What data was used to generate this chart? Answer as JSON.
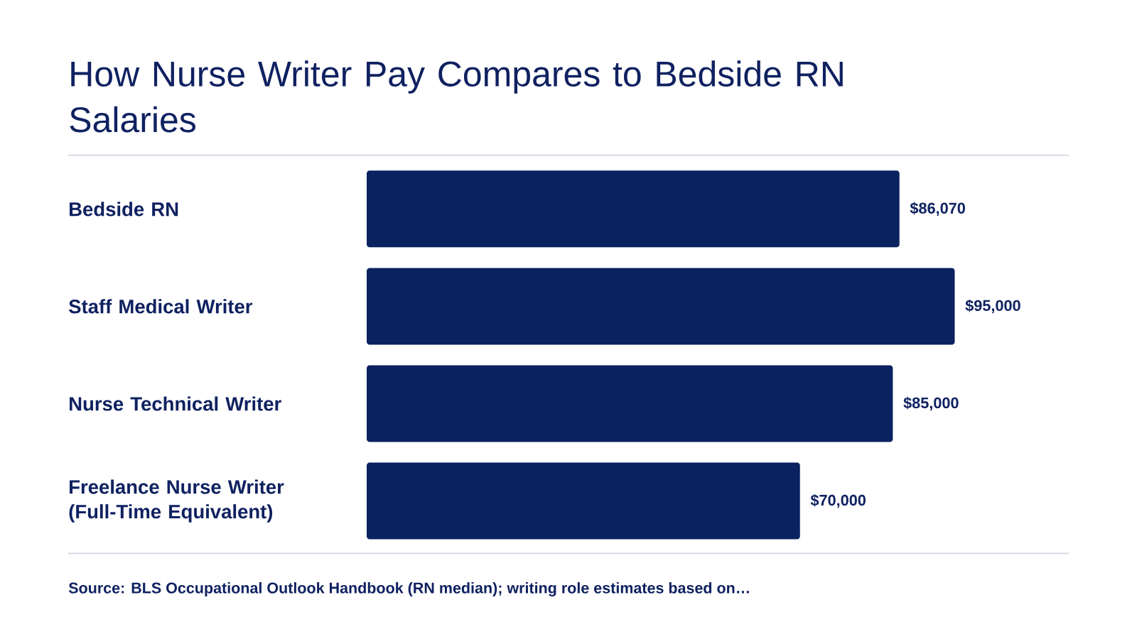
{
  "chart_data": {
    "type": "bar",
    "orientation": "horizontal",
    "title": "How Nurse Writer Pay Compares to Bedside RN Salaries",
    "categories": [
      "Bedside RN",
      "Staff Medical Writer",
      "Nurse Technical Writer",
      "Freelance Nurse Writer (Full-Time Equivalent)"
    ],
    "values": [
      86070,
      95000,
      85000,
      70000
    ],
    "value_labels": [
      "$86,070",
      "$95,000",
      "$85,000",
      "$70,000"
    ],
    "color": "#0b2260",
    "tick_labels": "y",
    "annotations": [
      "Source: BLS Occupational Outlook Handbook (RN median); writing role estimates based on…"
    ]
  }
}
